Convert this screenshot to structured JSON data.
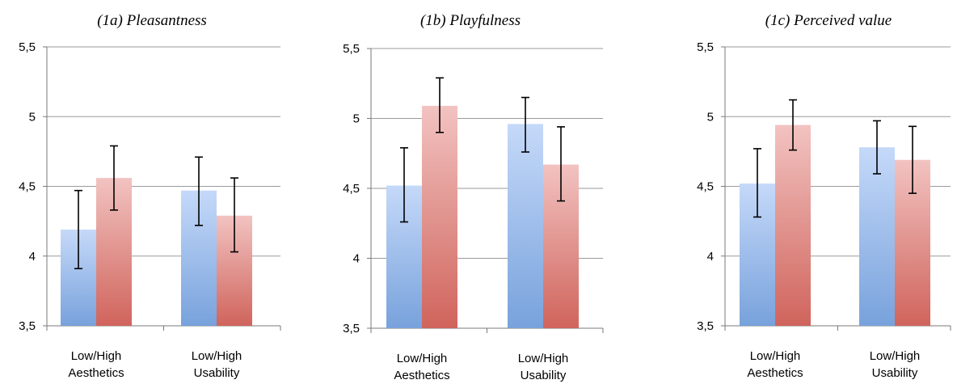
{
  "colors": {
    "low_top": "#c5d9f9",
    "low_bottom": "#78a2dc",
    "high_top": "#f2c3c1",
    "high_bottom": "#d0645c",
    "grid": "#9a9a9a"
  },
  "chart_data": [
    {
      "type": "bar",
      "title": "(1a) Pleasantness",
      "categories": [
        "Low/High Aesthetics",
        "Low/High Usability"
      ],
      "category_lines": [
        [
          "Low/High",
          "Aesthetics"
        ],
        [
          "Low/High",
          "Usability"
        ]
      ],
      "ylim": [
        3.5,
        5.5
      ],
      "yticks": [
        "3,5",
        "4",
        "4,5",
        "5",
        "5,5"
      ],
      "ytick_values": [
        3.5,
        4,
        4.5,
        5,
        5.5
      ],
      "grid": true,
      "series": [
        {
          "values": [
            4.19,
            4.47
          ],
          "errors": [
            [
              3.91,
              4.47
            ],
            [
              4.22,
              4.71
            ]
          ]
        },
        {
          "values": [
            4.56,
            4.29
          ],
          "errors": [
            [
              4.33,
              4.79
            ],
            [
              4.03,
              4.56
            ]
          ]
        }
      ]
    },
    {
      "type": "bar",
      "title": "(1b) Playfulness",
      "categories": [
        "Low/High Aesthetics",
        "Low/High Usability"
      ],
      "category_lines": [
        [
          "Low/High",
          "Aesthetics"
        ],
        [
          "Low/High",
          "Usability"
        ]
      ],
      "ylim": [
        3.5,
        5.5
      ],
      "yticks": [
        "3,5",
        "4",
        "4,5",
        "5",
        "5,5"
      ],
      "ytick_values": [
        3.5,
        4,
        4.5,
        5,
        5.5
      ],
      "grid": true,
      "series": [
        {
          "values": [
            4.52,
            4.96
          ],
          "errors": [
            [
              4.26,
              4.79
            ],
            [
              4.76,
              5.15
            ]
          ]
        },
        {
          "values": [
            5.09,
            4.67
          ],
          "errors": [
            [
              4.9,
              5.29
            ],
            [
              4.41,
              4.94
            ]
          ]
        }
      ]
    },
    {
      "type": "bar",
      "title": "(1c) Perceived value",
      "categories": [
        "Low/High Aesthetics",
        "Low/High Usability"
      ],
      "category_lines": [
        [
          "Low/High",
          "Aesthetics"
        ],
        [
          "Low/High",
          "Usability"
        ]
      ],
      "ylim": [
        3.5,
        5.5
      ],
      "yticks": [
        "3,5",
        "4",
        "4,5",
        "5",
        "5,5"
      ],
      "ytick_values": [
        3.5,
        4,
        4.5,
        5,
        5.5
      ],
      "grid": true,
      "series": [
        {
          "values": [
            4.52,
            4.78
          ],
          "errors": [
            [
              4.28,
              4.77
            ],
            [
              4.59,
              4.97
            ]
          ]
        },
        {
          "values": [
            4.94,
            4.69
          ],
          "errors": [
            [
              4.76,
              5.12
            ],
            [
              4.45,
              4.93
            ]
          ]
        }
      ]
    }
  ]
}
